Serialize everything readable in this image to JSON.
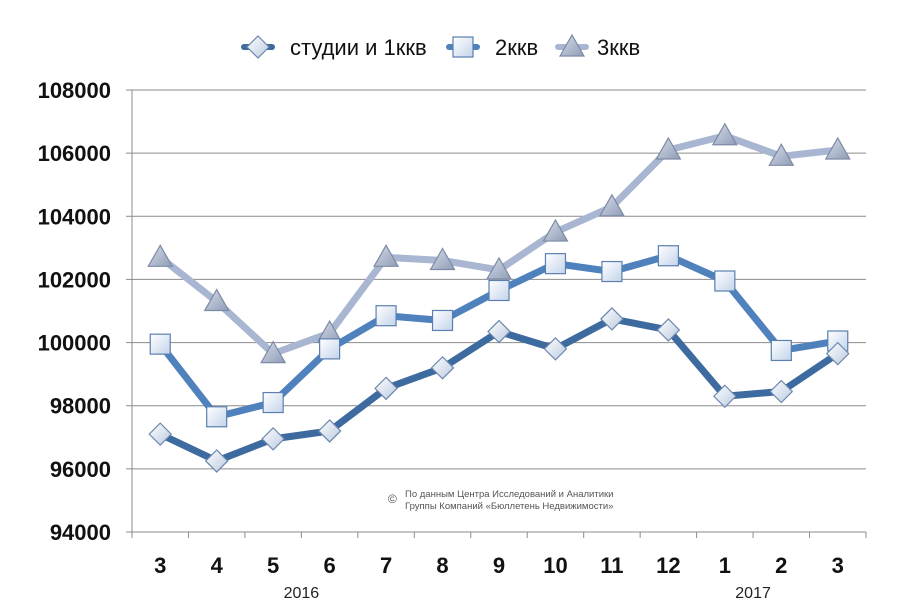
{
  "chart_data": {
    "type": "line",
    "categories": [
      "3",
      "4",
      "5",
      "6",
      "7",
      "8",
      "9",
      "10",
      "11",
      "12",
      "1",
      "2",
      "3"
    ],
    "year_labels": [
      {
        "label": "2016",
        "category_index": 2.5
      },
      {
        "label": "2017",
        "category_index": 10.5
      }
    ],
    "series": [
      {
        "name": "студии и 1ккв",
        "color": "#3d6a9f",
        "marker": "diamond",
        "values": [
          97100,
          96250,
          96950,
          97200,
          98550,
          99200,
          100350,
          99800,
          100750,
          100400,
          98300,
          98450,
          99650
        ]
      },
      {
        "name": "2ккв",
        "color": "#4f81bd",
        "marker": "square",
        "values": [
          99950,
          97650,
          98100,
          99800,
          100850,
          100700,
          101650,
          102500,
          102250,
          102750,
          101950,
          99750,
          100050
        ]
      },
      {
        "name": "3ккв",
        "color": "#a9b6d1",
        "marker": "triangle",
        "values": [
          102700,
          101300,
          99650,
          100300,
          102700,
          102600,
          102300,
          103500,
          104300,
          106100,
          106550,
          105900,
          106100
        ]
      }
    ],
    "yticks": [
      "94000",
      "96000",
      "98000",
      "100000",
      "102000",
      "104000",
      "106000",
      "108000"
    ],
    "ylim": [
      94000,
      108000
    ],
    "grid": true,
    "legend": "top-center",
    "watermark": {
      "symbol": "©",
      "line1": "По данным Центра Исследований и Аналитики",
      "line2": "Группы Компаний «Бюллетень Недвижимости»"
    }
  }
}
